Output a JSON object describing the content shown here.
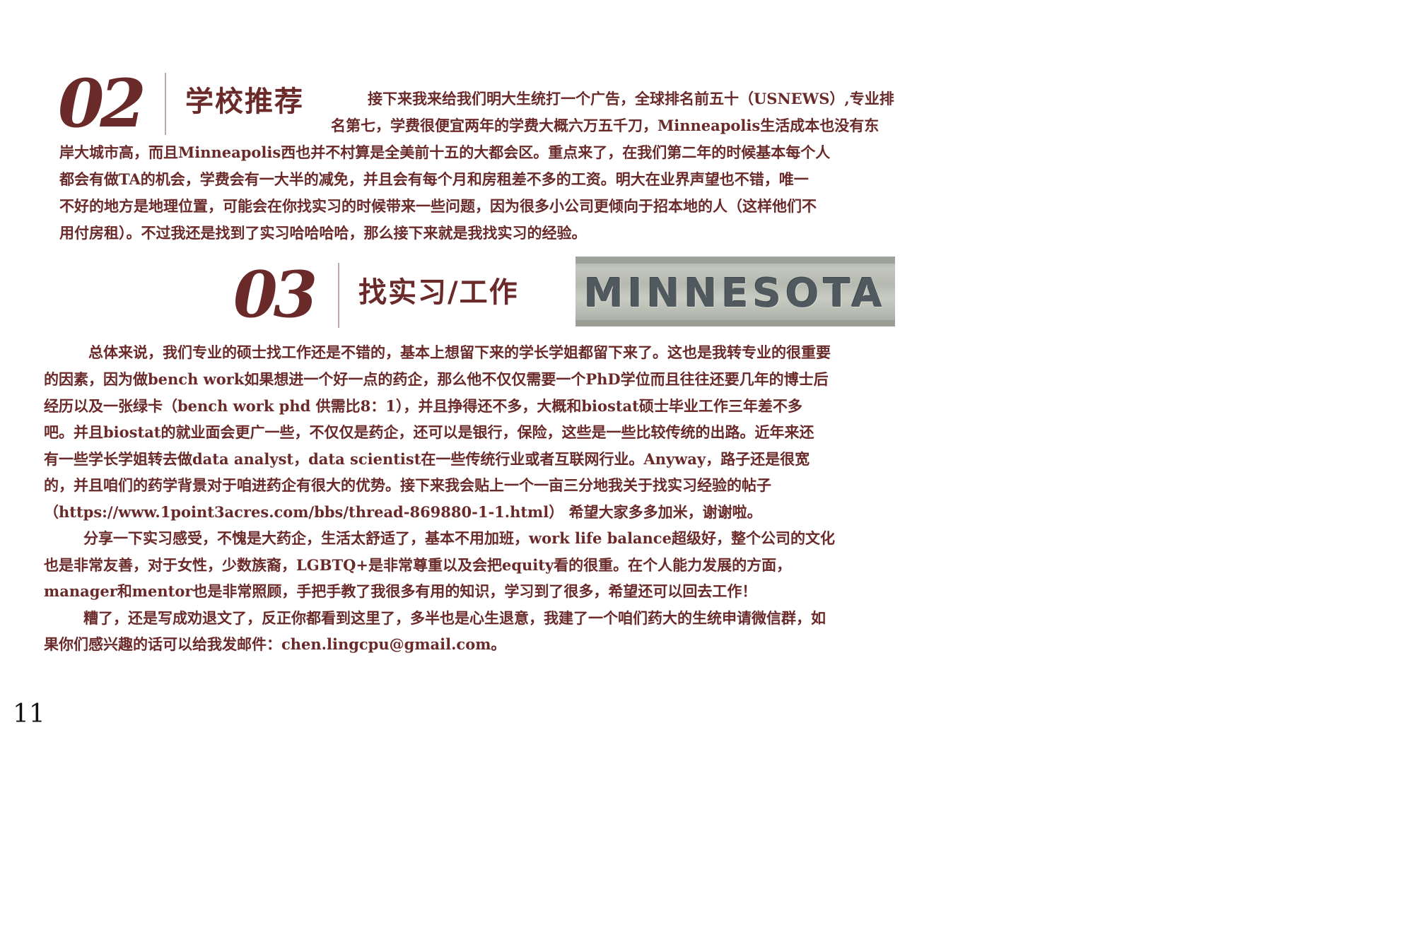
{
  "section_02": {
    "number": "02",
    "title": "学校推荐",
    "lines": [
      "接下来我来给我们明大生统打一个广告，全球排名前五十（USNEWS）,专业排",
      "名第七，学费很便宜两年的学费大概六万五千刀，Minneapolis生活成本也没有东",
      "岸大城市高，而且Minneapolis西也并不村算是全美前十五的大都会区。重点来了，在我们第二年的时候基本每个人",
      "都会有做TA的机会，学费会有一大半的减免，并且会有每个月和房租差不多的工资。明大在业界声望也不错，唯一",
      "不好的地方是地理位置，可能会在你找实习的时候带来一些问题，因为很多小公司更倾向于招本地的人（这样他们不",
      "用付房租）。不过我还是找到了实习哈哈哈哈，那么接下来就是我找实习的经验。"
    ]
  },
  "section_03": {
    "number": "03",
    "title": "找实习/工作",
    "photo_text": "MINNESOTA",
    "lines": [
      "总体来说，我们专业的硕士找工作还是不错的，基本上想留下来的学长学姐都留下来了。这也是我转专业的很重要",
      "的因素，因为做bench work如果想进一个好一点的药企，那么他不仅仅需要一个PhD学位而且往往还要几年的博士后",
      "经历以及一张绿卡（bench work phd 供需比8：1），并且挣得还不多，大概和biostat硕士毕业工作三年差不多",
      "吧。并且biostat的就业面会更广一些，不仅仅是药企，还可以是银行，保险，这些是一些比较传统的出路。近年来还",
      "有一些学长学姐转去做data analyst，data scientist在一些传统行业或者互联网行业。Anyway，路子还是很宽",
      "的，并且咱们的药学背景对于咱进药企有很大的优势。接下来我会贴上一个一亩三分地我关于找实习经验的帖子",
      "（https://www.1point3acres.com/bbs/thread-869880-1-1.html） 希望大家多多加米，谢谢啦。",
      "分享一下实习感受，不愧是大药企，生活太舒适了，基本不用加班，work life balance超级好，整个公司的文化",
      "也是非常友善，对于女性，少数族裔，LGBTQ+是非常尊重以及会把equity看的很重。在个人能力发展的方面，",
      "manager和mentor也是非常照顾，手把手教了我很多有用的知识，学习到了很多，希望还可以回去工作！",
      "糟了，还是写成劝退文了，反正你都看到这里了，多半也是心生退意，我建了一个咱们药大的生统申请微信群，如",
      "果你们感兴趣的话可以给我发邮件：chen.lingcpu@gmail.com。"
    ]
  },
  "page_number": "11",
  "colors": {
    "text": "#6b2a2a",
    "divider": "#b9a7b6"
  }
}
